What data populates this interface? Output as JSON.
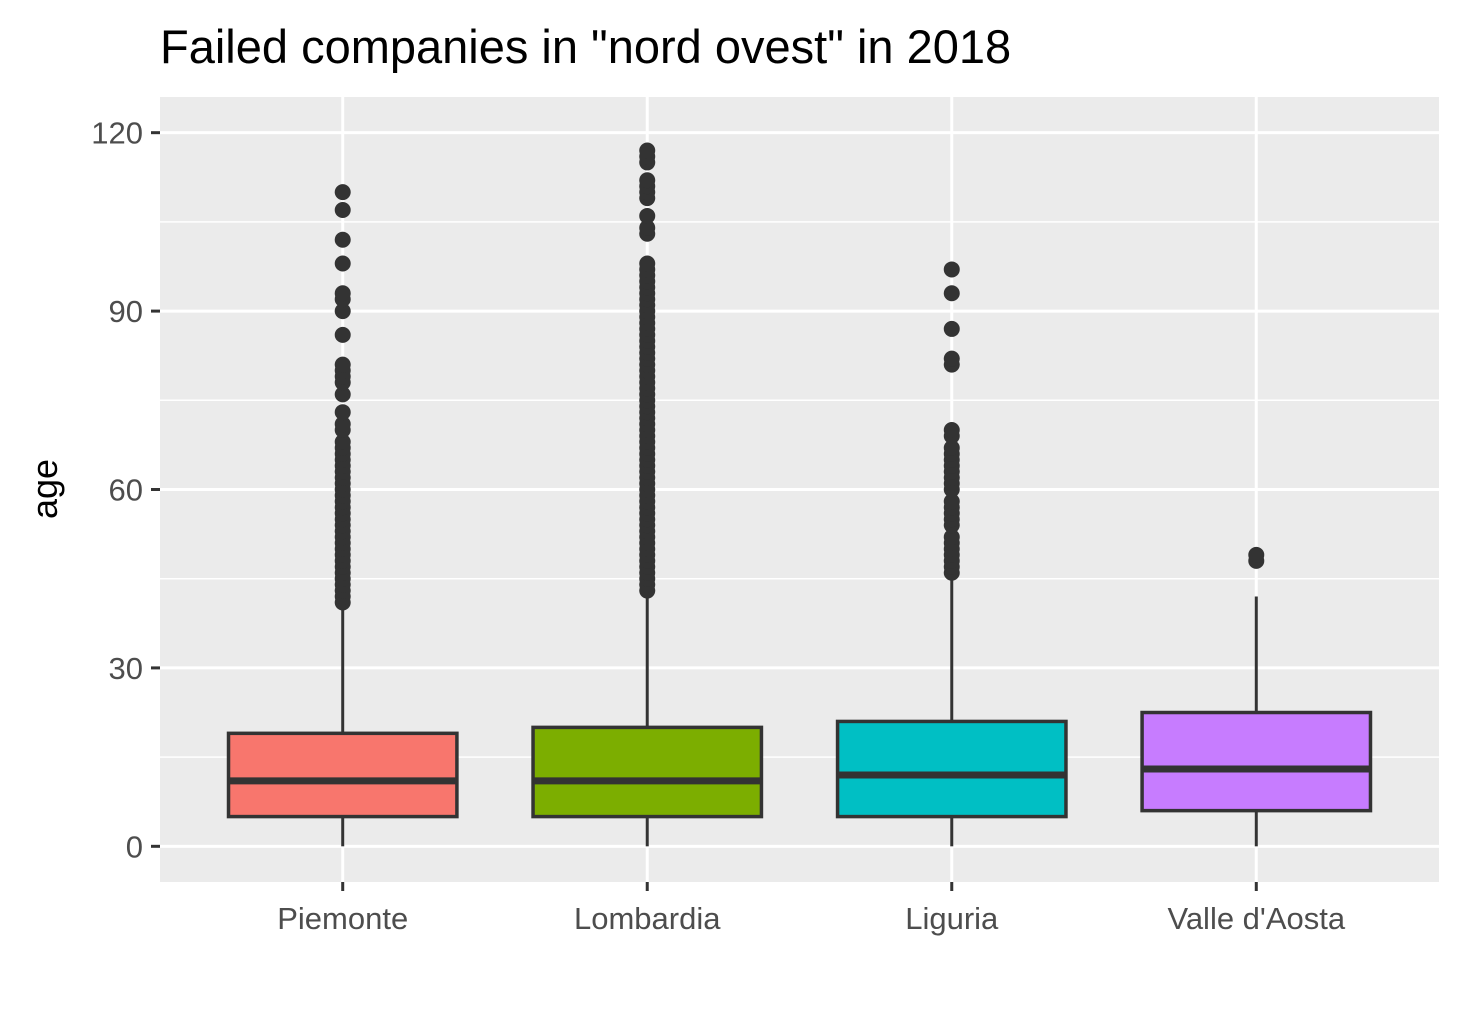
{
  "chart_data": {
    "type": "boxplot",
    "title": "Failed companies in \"nord ovest\" in 2018",
    "xlabel": "",
    "ylabel": "age",
    "ylim": [
      -6,
      126
    ],
    "yticks": [
      0,
      30,
      60,
      90,
      120
    ],
    "grid": true,
    "legend": "none",
    "categories": [
      "Piemonte",
      "Lombardia",
      "Liguria",
      "Valle d'Aosta"
    ],
    "boxes": [
      {
        "category": "Piemonte",
        "color": "#F8766D",
        "whisker_low": 0,
        "q1": 5,
        "median": 11,
        "q3": 19,
        "whisker_high": 40,
        "outliers": [
          41,
          42,
          43,
          44,
          45,
          46,
          47,
          48,
          49,
          50,
          51,
          52,
          53,
          54,
          55,
          56,
          57,
          58,
          59,
          60,
          61,
          62,
          63,
          64,
          65,
          66,
          67,
          68,
          70,
          71,
          73,
          76,
          78,
          79,
          80,
          81,
          86,
          90,
          92,
          93,
          98,
          102,
          107,
          110
        ]
      },
      {
        "category": "Lombardia",
        "color": "#7CAE00",
        "whisker_low": 0,
        "q1": 5,
        "median": 11,
        "q3": 20,
        "whisker_high": 42,
        "outliers": [
          43,
          44,
          45,
          46,
          47,
          48,
          49,
          50,
          51,
          52,
          53,
          54,
          55,
          56,
          57,
          58,
          59,
          60,
          61,
          62,
          63,
          64,
          65,
          66,
          67,
          68,
          69,
          70,
          71,
          72,
          73,
          74,
          75,
          76,
          77,
          78,
          79,
          80,
          81,
          82,
          83,
          84,
          85,
          86,
          87,
          88,
          89,
          90,
          91,
          92,
          93,
          94,
          95,
          96,
          97,
          98,
          103,
          104,
          106,
          109,
          110,
          111,
          112,
          115,
          116,
          117
        ]
      },
      {
        "category": "Liguria",
        "color": "#00BFC4",
        "whisker_low": 0,
        "q1": 5,
        "median": 12,
        "q3": 21,
        "whisker_high": 45,
        "outliers": [
          46,
          47,
          48,
          49,
          50,
          51,
          52,
          54,
          55,
          56,
          57,
          58,
          60,
          61,
          62,
          63,
          64,
          65,
          66,
          67,
          69,
          70,
          81,
          82,
          87,
          93,
          97
        ]
      },
      {
        "category": "Valle d'Aosta",
        "color": "#C77CFF",
        "whisker_low": 0,
        "q1": 6,
        "median": 13,
        "q3": 22.5,
        "whisker_high": 42,
        "outliers": [
          48,
          49
        ]
      }
    ]
  }
}
